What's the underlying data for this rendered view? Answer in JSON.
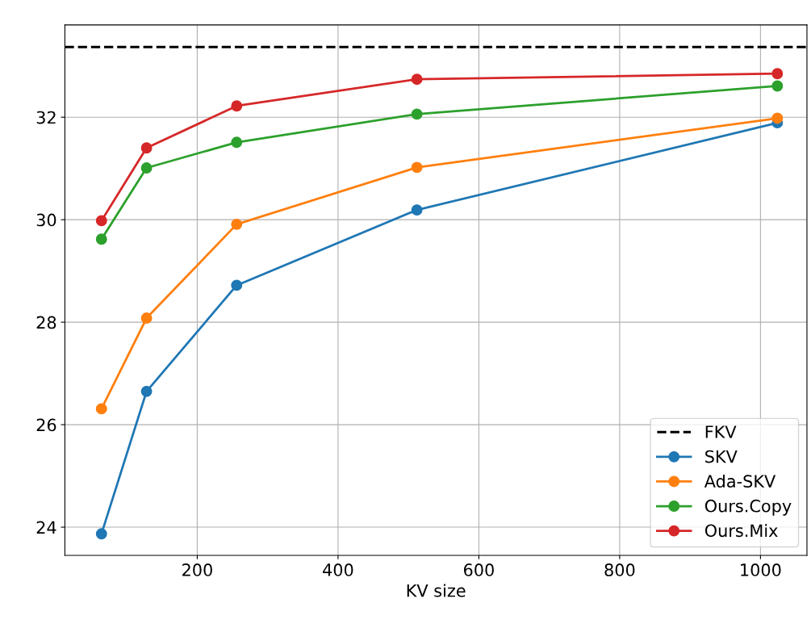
{
  "chart_data": {
    "type": "line",
    "xlabel": "KV size",
    "x": [
      64,
      128,
      256,
      512,
      1024
    ],
    "series": [
      {
        "name": "SKV",
        "color": "#1f77b4",
        "values": [
          23.87,
          26.65,
          28.72,
          30.19,
          31.89
        ]
      },
      {
        "name": "Ada-SKV",
        "color": "#ff7f0e",
        "values": [
          26.31,
          28.08,
          29.91,
          31.02,
          31.98
        ]
      },
      {
        "name": "Ours.Copy",
        "color": "#2ca02c",
        "values": [
          29.62,
          31.01,
          31.51,
          32.06,
          32.61
        ]
      },
      {
        "name": "Ours.Mix",
        "color": "#d62728",
        "values": [
          29.98,
          31.4,
          32.22,
          32.74,
          32.85
        ]
      }
    ],
    "ref_lines": [
      {
        "axis": "y",
        "value": 33.37,
        "label": "FKV",
        "color": "#000000",
        "line_style": "dashed"
      }
    ],
    "xlim": [
      12,
      1066
    ],
    "ylim": [
      23.45,
      33.8
    ],
    "xticks": [
      200,
      400,
      600,
      800,
      1000
    ],
    "yticks": [
      24,
      26,
      28,
      30,
      32
    ],
    "grid": true,
    "legend": "bottom right",
    "marker": "circle",
    "line_style": "solid"
  }
}
